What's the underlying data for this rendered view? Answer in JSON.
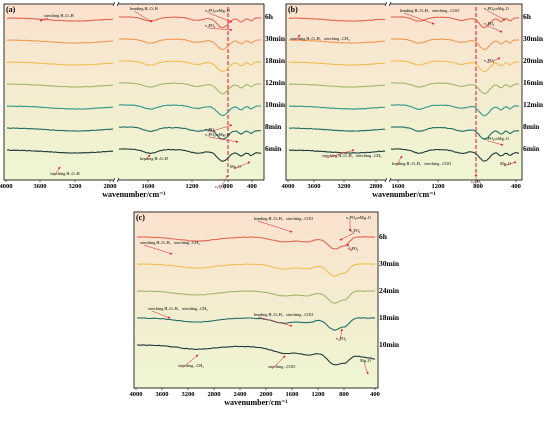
{
  "chart_data": [
    {
      "type": "line",
      "panel_label": "(a)",
      "xlabel": "wavenumber/cm⁻¹",
      "x_ticks": [
        "4000",
        "3600",
        "3200",
        "2800",
        "1600",
        "1200",
        "800",
        "400"
      ],
      "series": [
        {
          "name": "6h"
        },
        {
          "name": "30min"
        },
        {
          "name": "18min"
        },
        {
          "name": "12min"
        },
        {
          "name": "10min"
        },
        {
          "name": "8min"
        },
        {
          "name": "6min"
        }
      ],
      "annotations": [
        "streching H–O–H",
        "bending H–O–H",
        "v₃PO₄orMg–O",
        "v₄PO₄",
        "v₄PO₄",
        "v₃PO₄orMg–O",
        "streching H–O–H",
        "bending H–O–H",
        "Mg–O",
        "v₃PO₄"
      ]
    },
    {
      "type": "line",
      "panel_label": "(b)",
      "xlabel": "wavenumber/cm⁻¹",
      "x_ticks": [
        "4000",
        "3600",
        "3200",
        "2800",
        "1600",
        "1200",
        "800",
        "400"
      ],
      "series": [
        {
          "name": "6h"
        },
        {
          "name": "30min"
        },
        {
          "name": "20min"
        },
        {
          "name": "16min"
        },
        {
          "name": "12min"
        },
        {
          "name": "8min"
        },
        {
          "name": "6min"
        }
      ],
      "annotations": [
        "streching H–O–H、streching –CH₃",
        "bending H–O–H、streching –COO",
        "v₃PO₄orMg–O",
        "v₄PO₄",
        "v₄PO₄",
        "v₃PO₄orMg–O",
        "streching H–O–H、streching –CH₃",
        "bending H–O–H、streching –COO",
        "Mg–O",
        "v₃PO₄"
      ]
    },
    {
      "type": "line",
      "panel_label": "(c)",
      "xlabel": "wavenumber/cm⁻¹",
      "x_ticks": [
        "4000",
        "3600",
        "3200",
        "2800",
        "2400",
        "2000",
        "1600",
        "1200",
        "800",
        "400"
      ],
      "xlim": [
        4000,
        400
      ],
      "series": [
        {
          "name": "6h"
        },
        {
          "name": "30min"
        },
        {
          "name": "24min"
        },
        {
          "name": "18min"
        },
        {
          "name": "10min"
        }
      ],
      "annotations": [
        "streching H–O–H、streching –CH₃",
        "bending H–O–H、streching –COO",
        "v₃PO₄orMg–O",
        "v₄PO₄",
        "v₃PO₄",
        "streching H–O–H、streching –CH₃",
        "bending H–O–H、streching –COO",
        "v₃PO₄",
        "streching –CH₃",
        "streching –COO",
        "Mg–O"
      ]
    }
  ],
  "colors": {
    "background_top": "#fbe2cf",
    "background_bottom": "#eef6d2",
    "series": [
      "#e8664f",
      "#f29a55",
      "#f2bd55",
      "#a3b56a",
      "#2f9a8a",
      "#1f6f66",
      "#1d3b3a"
    ],
    "marker": "#e8102d"
  }
}
